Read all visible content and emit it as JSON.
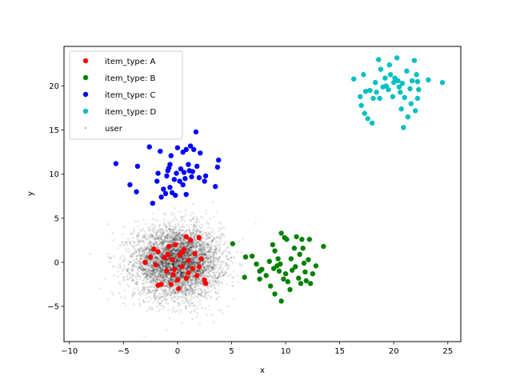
{
  "chart_data": {
    "type": "scatter",
    "xlabel": "x",
    "ylabel": "y",
    "xlim": [
      -10.5,
      26.2
    ],
    "ylim": [
      -9.0,
      24.5
    ],
    "xticks": [
      -10,
      -5,
      0,
      5,
      10,
      15,
      20,
      25
    ],
    "yticks": [
      -5,
      0,
      5,
      10,
      15,
      20
    ],
    "grid": false,
    "legend_position": "top-left",
    "series": [
      {
        "name": "item_type: A",
        "color": "#ff0000",
        "points": [
          [
            -3.0,
            0.0
          ],
          [
            -2.5,
            0.6
          ],
          [
            -2.0,
            -0.3
          ],
          [
            -1.8,
            1.2
          ],
          [
            -1.5,
            -2.5
          ],
          [
            -1.2,
            0.5
          ],
          [
            -1.0,
            -1.0
          ],
          [
            -0.8,
            1.8
          ],
          [
            -0.5,
            0.3
          ],
          [
            -0.3,
            -0.8
          ],
          [
            -0.2,
            2.0
          ],
          [
            0.0,
            -2.0
          ],
          [
            0.2,
            0.8
          ],
          [
            0.4,
            -0.5
          ],
          [
            0.6,
            1.5
          ],
          [
            0.8,
            -1.8
          ],
          [
            1.0,
            0.2
          ],
          [
            1.2,
            2.5
          ],
          [
            1.4,
            -0.7
          ],
          [
            1.6,
            1.0
          ],
          [
            1.8,
            -1.5
          ],
          [
            2.0,
            2.8
          ],
          [
            2.2,
            0.4
          ],
          [
            2.5,
            -2.0
          ],
          [
            2.6,
            -2.4
          ],
          [
            -1.8,
            -2.6
          ],
          [
            -0.6,
            -2.5
          ],
          [
            0.1,
            -3.0
          ],
          [
            -0.9,
            0.9
          ],
          [
            0.5,
            1.2
          ],
          [
            1.0,
            -1.2
          ],
          [
            2.0,
            -0.5
          ],
          [
            -2.2,
            1.5
          ],
          [
            -0.4,
            -1.4
          ],
          [
            0.8,
            2.9
          ]
        ]
      },
      {
        "name": "item_type: B",
        "color": "#008000",
        "points": [
          [
            5.1,
            2.1
          ],
          [
            6.2,
            -1.7
          ],
          [
            6.3,
            0.6
          ],
          [
            6.9,
            0.7
          ],
          [
            7.3,
            -0.2
          ],
          [
            7.6,
            -1.0
          ],
          [
            7.8,
            -0.8
          ],
          [
            7.6,
            -1.9
          ],
          [
            8.2,
            -1.5
          ],
          [
            8.5,
            0.1
          ],
          [
            8.6,
            -2.7
          ],
          [
            8.8,
            2.0
          ],
          [
            9.0,
            -3.6
          ],
          [
            9.0,
            1.3
          ],
          [
            9.3,
            0.4
          ],
          [
            9.4,
            -1.0
          ],
          [
            9.5,
            -0.2
          ],
          [
            9.6,
            -4.4
          ],
          [
            9.6,
            3.3
          ],
          [
            9.8,
            -1.9
          ],
          [
            9.9,
            2.8
          ],
          [
            10.1,
            2.6
          ],
          [
            10.2,
            -2.2
          ],
          [
            10.4,
            -3.1
          ],
          [
            10.5,
            0.4
          ],
          [
            10.6,
            -0.9
          ],
          [
            10.8,
            1.6
          ],
          [
            10.9,
            -0.5
          ],
          [
            11.0,
            2.9
          ],
          [
            11.2,
            -1.8
          ],
          [
            11.3,
            0.9
          ],
          [
            11.4,
            -2.4
          ],
          [
            11.5,
            2.6
          ],
          [
            11.6,
            1.6
          ],
          [
            11.7,
            -0.1
          ],
          [
            11.9,
            -2.1
          ],
          [
            12.1,
            0.3
          ],
          [
            12.2,
            2.6
          ],
          [
            12.3,
            -2.4
          ],
          [
            12.5,
            -1.3
          ],
          [
            12.8,
            -0.4
          ],
          [
            13.5,
            1.8
          ],
          [
            9.2,
            -0.4
          ],
          [
            10.0,
            -1.3
          ],
          [
            8.9,
            -0.7
          ],
          [
            11.8,
            -1.1
          ]
        ]
      },
      {
        "name": "item_type: C",
        "color": "#0000ff",
        "points": [
          [
            -5.7,
            11.2
          ],
          [
            -4.4,
            8.8
          ],
          [
            -3.8,
            8.0
          ],
          [
            -3.7,
            10.9
          ],
          [
            -2.6,
            13.1
          ],
          [
            -2.3,
            6.7
          ],
          [
            -1.9,
            9.2
          ],
          [
            -1.8,
            10.1
          ],
          [
            -1.6,
            12.6
          ],
          [
            -1.5,
            7.4
          ],
          [
            -1.3,
            8.3
          ],
          [
            -1.1,
            7.8
          ],
          [
            -1.0,
            9.8
          ],
          [
            -0.8,
            10.7
          ],
          [
            -0.7,
            11.1
          ],
          [
            -0.7,
            8.5
          ],
          [
            -0.6,
            12.1
          ],
          [
            -0.5,
            7.9
          ],
          [
            -0.3,
            9.4
          ],
          [
            -0.2,
            7.6
          ],
          [
            -0.1,
            10.1
          ],
          [
            0.0,
            13.0
          ],
          [
            0.2,
            9.2
          ],
          [
            0.3,
            10.6
          ],
          [
            0.5,
            12.5
          ],
          [
            0.6,
            10.2
          ],
          [
            0.7,
            9.5
          ],
          [
            0.8,
            7.7
          ],
          [
            0.8,
            12.8
          ],
          [
            1.0,
            11.1
          ],
          [
            1.1,
            10.4
          ],
          [
            1.2,
            13.2
          ],
          [
            1.3,
            9.7
          ],
          [
            1.4,
            10.3
          ],
          [
            1.5,
            12.8
          ],
          [
            1.7,
            14.8
          ],
          [
            1.8,
            10.9
          ],
          [
            2.0,
            9.6
          ],
          [
            2.1,
            12.4
          ],
          [
            2.5,
            9.2
          ],
          [
            2.6,
            9.8
          ],
          [
            3.5,
            8.6
          ],
          [
            3.7,
            10.8
          ],
          [
            3.8,
            11.6
          ],
          [
            0.5,
            8.8
          ],
          [
            -0.9,
            10.4
          ]
        ]
      },
      {
        "name": "item_type: D",
        "color": "#00bfbf",
        "points": [
          [
            16.3,
            20.8
          ],
          [
            16.9,
            18.8
          ],
          [
            17.0,
            17.8
          ],
          [
            17.2,
            21.3
          ],
          [
            17.3,
            16.9
          ],
          [
            17.4,
            19.4
          ],
          [
            17.6,
            16.3
          ],
          [
            17.8,
            19.5
          ],
          [
            18.0,
            15.8
          ],
          [
            18.1,
            18.6
          ],
          [
            18.3,
            20.4
          ],
          [
            18.4,
            19.3
          ],
          [
            18.6,
            23.0
          ],
          [
            18.7,
            18.6
          ],
          [
            18.8,
            21.9
          ],
          [
            19.0,
            19.9
          ],
          [
            19.3,
            20.0
          ],
          [
            19.5,
            19.6
          ],
          [
            19.6,
            22.4
          ],
          [
            19.7,
            21.3
          ],
          [
            19.9,
            18.8
          ],
          [
            20.0,
            20.4
          ],
          [
            20.1,
            20.9
          ],
          [
            20.3,
            23.2
          ],
          [
            20.4,
            20.6
          ],
          [
            20.5,
            19.9
          ],
          [
            20.7,
            17.4
          ],
          [
            20.8,
            20.3
          ],
          [
            20.9,
            15.3
          ],
          [
            21.0,
            18.7
          ],
          [
            21.2,
            21.7
          ],
          [
            21.3,
            16.5
          ],
          [
            21.5,
            19.7
          ],
          [
            21.7,
            20.6
          ],
          [
            21.9,
            22.9
          ],
          [
            22.0,
            17.2
          ],
          [
            22.1,
            21.3
          ],
          [
            22.2,
            20.5
          ],
          [
            22.2,
            18.6
          ],
          [
            22.3,
            19.6
          ],
          [
            23.2,
            20.7
          ],
          [
            24.5,
            20.4
          ],
          [
            20.6,
            19.3
          ],
          [
            19.2,
            20.9
          ],
          [
            21.6,
            18.0
          ]
        ]
      }
    ],
    "background_series": {
      "name": "user",
      "color": "#000000",
      "distribution": "normal",
      "center": [
        0.0,
        0.0
      ],
      "std": [
        2.0,
        2.0
      ],
      "count": 5000
    }
  }
}
